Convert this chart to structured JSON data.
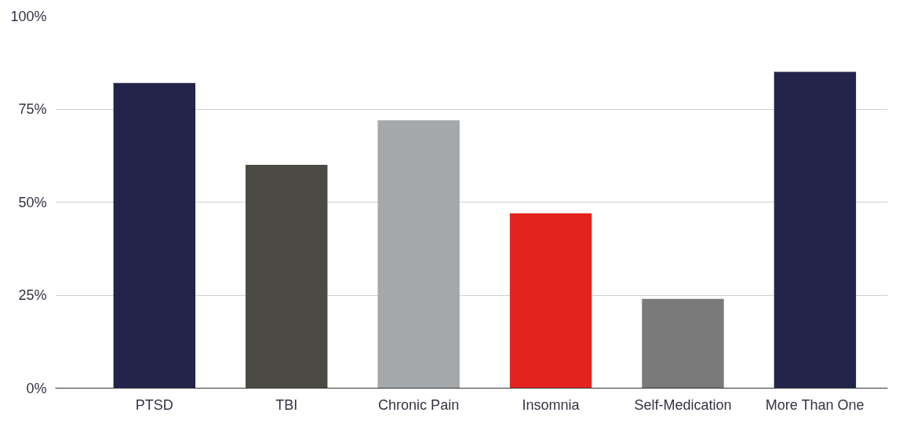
{
  "chart_data": {
    "type": "bar",
    "categories": [
      "PTSD",
      "TBI",
      "Chronic Pain",
      "Insomnia",
      "Self-Medication",
      "More Than One"
    ],
    "values": [
      82,
      60,
      72,
      47,
      24,
      85
    ],
    "colors": [
      "#22244a",
      "#4b4b43",
      "#a4a8ab",
      "#e2231e",
      "#7a7a7a",
      "#22244a"
    ],
    "ylim": [
      0,
      100
    ],
    "yticks": [
      {
        "value": 0,
        "label": "0%"
      },
      {
        "value": 25,
        "label": "25%"
      },
      {
        "value": 50,
        "label": "50%"
      },
      {
        "value": 75,
        "label": "75%"
      },
      {
        "value": 100,
        "label": "100%"
      }
    ],
    "grid": "y"
  }
}
